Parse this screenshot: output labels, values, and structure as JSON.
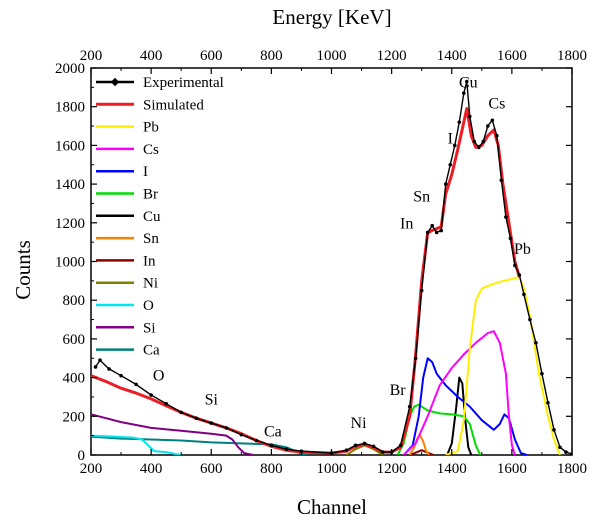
{
  "chart_data": {
    "type": "line",
    "xlabel": "Channel",
    "x2label": "Energy [KeV]",
    "ylabel": "Counts",
    "xlim": [
      200,
      1800
    ],
    "ylim": [
      0,
      2000
    ],
    "x_ticks": [
      200,
      400,
      600,
      800,
      1000,
      1200,
      1400,
      1600,
      1800
    ],
    "x2_ticks": [
      200,
      400,
      600,
      800,
      1000,
      1200,
      1400,
      1600,
      1800
    ],
    "y_ticks": [
      0,
      200,
      400,
      600,
      800,
      1000,
      1200,
      1400,
      1600,
      1800,
      2000
    ],
    "legend_position": "top-left",
    "series": [
      {
        "name": "Experimental",
        "color": "#000000",
        "style": "points-line",
        "points": [
          [
            215,
            455
          ],
          [
            230,
            490
          ],
          [
            260,
            445
          ],
          [
            300,
            410
          ],
          [
            350,
            365
          ],
          [
            400,
            310
          ],
          [
            450,
            265
          ],
          [
            500,
            220
          ],
          [
            550,
            190
          ],
          [
            600,
            165
          ],
          [
            650,
            140
          ],
          [
            700,
            105
          ],
          [
            750,
            75
          ],
          [
            800,
            50
          ],
          [
            850,
            30
          ],
          [
            900,
            20
          ],
          [
            1000,
            10
          ],
          [
            1050,
            25
          ],
          [
            1080,
            50
          ],
          [
            1110,
            60
          ],
          [
            1140,
            45
          ],
          [
            1170,
            15
          ],
          [
            1200,
            15
          ],
          [
            1230,
            50
          ],
          [
            1260,
            250
          ],
          [
            1280,
            500
          ],
          [
            1300,
            850
          ],
          [
            1320,
            1150
          ],
          [
            1335,
            1185
          ],
          [
            1350,
            1150
          ],
          [
            1365,
            1160
          ],
          [
            1380,
            1400
          ],
          [
            1395,
            1500
          ],
          [
            1410,
            1600
          ],
          [
            1425,
            1720
          ],
          [
            1440,
            1870
          ],
          [
            1450,
            1930
          ],
          [
            1460,
            1750
          ],
          [
            1475,
            1620
          ],
          [
            1490,
            1590
          ],
          [
            1505,
            1620
          ],
          [
            1520,
            1700
          ],
          [
            1535,
            1730
          ],
          [
            1550,
            1650
          ],
          [
            1565,
            1420
          ],
          [
            1580,
            1230
          ],
          [
            1595,
            1120
          ],
          [
            1610,
            980
          ],
          [
            1625,
            930
          ],
          [
            1640,
            830
          ],
          [
            1660,
            700
          ],
          [
            1680,
            580
          ],
          [
            1700,
            420
          ],
          [
            1720,
            270
          ],
          [
            1740,
            130
          ],
          [
            1760,
            40
          ],
          [
            1780,
            15
          ],
          [
            1800,
            5
          ]
        ]
      },
      {
        "name": "Simulated",
        "color": "#ee1c25",
        "style": "line",
        "points": [
          [
            200,
            410
          ],
          [
            250,
            380
          ],
          [
            300,
            345
          ],
          [
            350,
            320
          ],
          [
            400,
            290
          ],
          [
            450,
            255
          ],
          [
            500,
            220
          ],
          [
            550,
            190
          ],
          [
            600,
            165
          ],
          [
            650,
            140
          ],
          [
            700,
            110
          ],
          [
            750,
            75
          ],
          [
            800,
            45
          ],
          [
            850,
            25
          ],
          [
            900,
            15
          ],
          [
            1000,
            10
          ],
          [
            1050,
            20
          ],
          [
            1080,
            45
          ],
          [
            1110,
            55
          ],
          [
            1140,
            40
          ],
          [
            1170,
            15
          ],
          [
            1200,
            15
          ],
          [
            1230,
            40
          ],
          [
            1260,
            200
          ],
          [
            1280,
            520
          ],
          [
            1300,
            900
          ],
          [
            1320,
            1150
          ],
          [
            1335,
            1160
          ],
          [
            1350,
            1170
          ],
          [
            1365,
            1180
          ],
          [
            1380,
            1350
          ],
          [
            1400,
            1450
          ],
          [
            1420,
            1580
          ],
          [
            1440,
            1720
          ],
          [
            1450,
            1790
          ],
          [
            1465,
            1650
          ],
          [
            1480,
            1590
          ],
          [
            1500,
            1600
          ],
          [
            1520,
            1650
          ],
          [
            1540,
            1680
          ],
          [
            1555,
            1600
          ],
          [
            1570,
            1400
          ],
          [
            1590,
            1200
          ],
          [
            1610,
            1000
          ],
          [
            1625,
            920
          ]
        ]
      },
      {
        "name": "Pb",
        "color": "#ffee00",
        "style": "line",
        "points": [
          [
            1380,
            0
          ],
          [
            1420,
            20
          ],
          [
            1440,
            180
          ],
          [
            1460,
            550
          ],
          [
            1480,
            800
          ],
          [
            1500,
            860
          ],
          [
            1530,
            880
          ],
          [
            1560,
            895
          ],
          [
            1600,
            910
          ],
          [
            1625,
            920
          ],
          [
            1640,
            860
          ],
          [
            1660,
            720
          ],
          [
            1690,
            420
          ],
          [
            1720,
            200
          ],
          [
            1740,
            80
          ],
          [
            1760,
            0
          ]
        ]
      },
      {
        "name": "Cs",
        "color": "#ff00ff",
        "style": "line",
        "points": [
          [
            1240,
            0
          ],
          [
            1280,
            60
          ],
          [
            1320,
            200
          ],
          [
            1360,
            360
          ],
          [
            1400,
            450
          ],
          [
            1440,
            520
          ],
          [
            1480,
            580
          ],
          [
            1520,
            630
          ],
          [
            1540,
            640
          ],
          [
            1560,
            580
          ],
          [
            1580,
            420
          ],
          [
            1590,
            200
          ],
          [
            1600,
            50
          ],
          [
            1610,
            0
          ]
        ]
      },
      {
        "name": "I",
        "color": "#0000ff",
        "style": "line",
        "points": [
          [
            1240,
            0
          ],
          [
            1270,
            50
          ],
          [
            1290,
            200
          ],
          [
            1305,
            400
          ],
          [
            1320,
            500
          ],
          [
            1335,
            480
          ],
          [
            1350,
            420
          ],
          [
            1380,
            360
          ],
          [
            1420,
            300
          ],
          [
            1460,
            250
          ],
          [
            1500,
            180
          ],
          [
            1540,
            130
          ],
          [
            1560,
            160
          ],
          [
            1575,
            210
          ],
          [
            1590,
            190
          ],
          [
            1610,
            80
          ],
          [
            1630,
            10
          ],
          [
            1650,
            0
          ]
        ]
      },
      {
        "name": "Br",
        "color": "#00dd00",
        "style": "line",
        "points": [
          [
            1220,
            0
          ],
          [
            1240,
            60
          ],
          [
            1260,
            200
          ],
          [
            1275,
            250
          ],
          [
            1290,
            260
          ],
          [
            1320,
            230
          ],
          [
            1360,
            215
          ],
          [
            1400,
            210
          ],
          [
            1440,
            200
          ],
          [
            1460,
            160
          ],
          [
            1480,
            50
          ],
          [
            1495,
            0
          ]
        ]
      },
      {
        "name": "Cu",
        "color": "#000000",
        "style": "line",
        "points": [
          [
            1385,
            0
          ],
          [
            1400,
            60
          ],
          [
            1415,
            250
          ],
          [
            1425,
            400
          ],
          [
            1435,
            370
          ],
          [
            1445,
            180
          ],
          [
            1455,
            40
          ],
          [
            1465,
            0
          ]
        ]
      },
      {
        "name": "Sn",
        "color": "#ff7f00",
        "style": "line",
        "points": [
          [
            1260,
            0
          ],
          [
            1275,
            40
          ],
          [
            1285,
            85
          ],
          [
            1295,
            100
          ],
          [
            1305,
            70
          ],
          [
            1315,
            20
          ],
          [
            1325,
            0
          ]
        ]
      },
      {
        "name": "In",
        "color": "#8b0000",
        "style": "line",
        "points": [
          [
            1260,
            0
          ],
          [
            1285,
            15
          ],
          [
            1300,
            25
          ],
          [
            1315,
            15
          ],
          [
            1340,
            0
          ]
        ]
      },
      {
        "name": "Ni",
        "color": "#808000",
        "style": "line",
        "points": [
          [
            1050,
            0
          ],
          [
            1080,
            30
          ],
          [
            1110,
            50
          ],
          [
            1140,
            30
          ],
          [
            1170,
            0
          ]
        ]
      },
      {
        "name": "O",
        "color": "#00e5ee",
        "style": "line",
        "points": [
          [
            200,
            100
          ],
          [
            280,
            95
          ],
          [
            340,
            90
          ],
          [
            370,
            80
          ],
          [
            390,
            50
          ],
          [
            410,
            20
          ],
          [
            450,
            15
          ],
          [
            480,
            5
          ],
          [
            500,
            0
          ]
        ]
      },
      {
        "name": "Si",
        "color": "#800080",
        "style": "line",
        "points": [
          [
            200,
            210
          ],
          [
            250,
            190
          ],
          [
            300,
            170
          ],
          [
            350,
            155
          ],
          [
            400,
            140
          ],
          [
            500,
            125
          ],
          [
            600,
            110
          ],
          [
            650,
            100
          ],
          [
            670,
            80
          ],
          [
            690,
            40
          ],
          [
            710,
            10
          ],
          [
            740,
            0
          ]
        ]
      },
      {
        "name": "Ca",
        "color": "#008080",
        "style": "line",
        "points": [
          [
            200,
            95
          ],
          [
            300,
            85
          ],
          [
            400,
            80
          ],
          [
            500,
            75
          ],
          [
            600,
            65
          ],
          [
            700,
            60
          ],
          [
            800,
            55
          ],
          [
            850,
            40
          ],
          [
            880,
            20
          ],
          [
            900,
            5
          ],
          [
            920,
            0
          ]
        ]
      }
    ],
    "annotations": [
      {
        "text": "O",
        "x": 425,
        "y": 385
      },
      {
        "text": "Si",
        "x": 600,
        "y": 260
      },
      {
        "text": "Ca",
        "x": 805,
        "y": 95
      },
      {
        "text": "Ni",
        "x": 1090,
        "y": 140
      },
      {
        "text": "Br",
        "x": 1220,
        "y": 310
      },
      {
        "text": "In",
        "x": 1250,
        "y": 1170
      },
      {
        "text": "Sn",
        "x": 1300,
        "y": 1310
      },
      {
        "text": "I",
        "x": 1395,
        "y": 1610
      },
      {
        "text": "Cu",
        "x": 1455,
        "y": 1900
      },
      {
        "text": "Cs",
        "x": 1550,
        "y": 1790
      },
      {
        "text": "Pb",
        "x": 1635,
        "y": 1040
      }
    ]
  }
}
